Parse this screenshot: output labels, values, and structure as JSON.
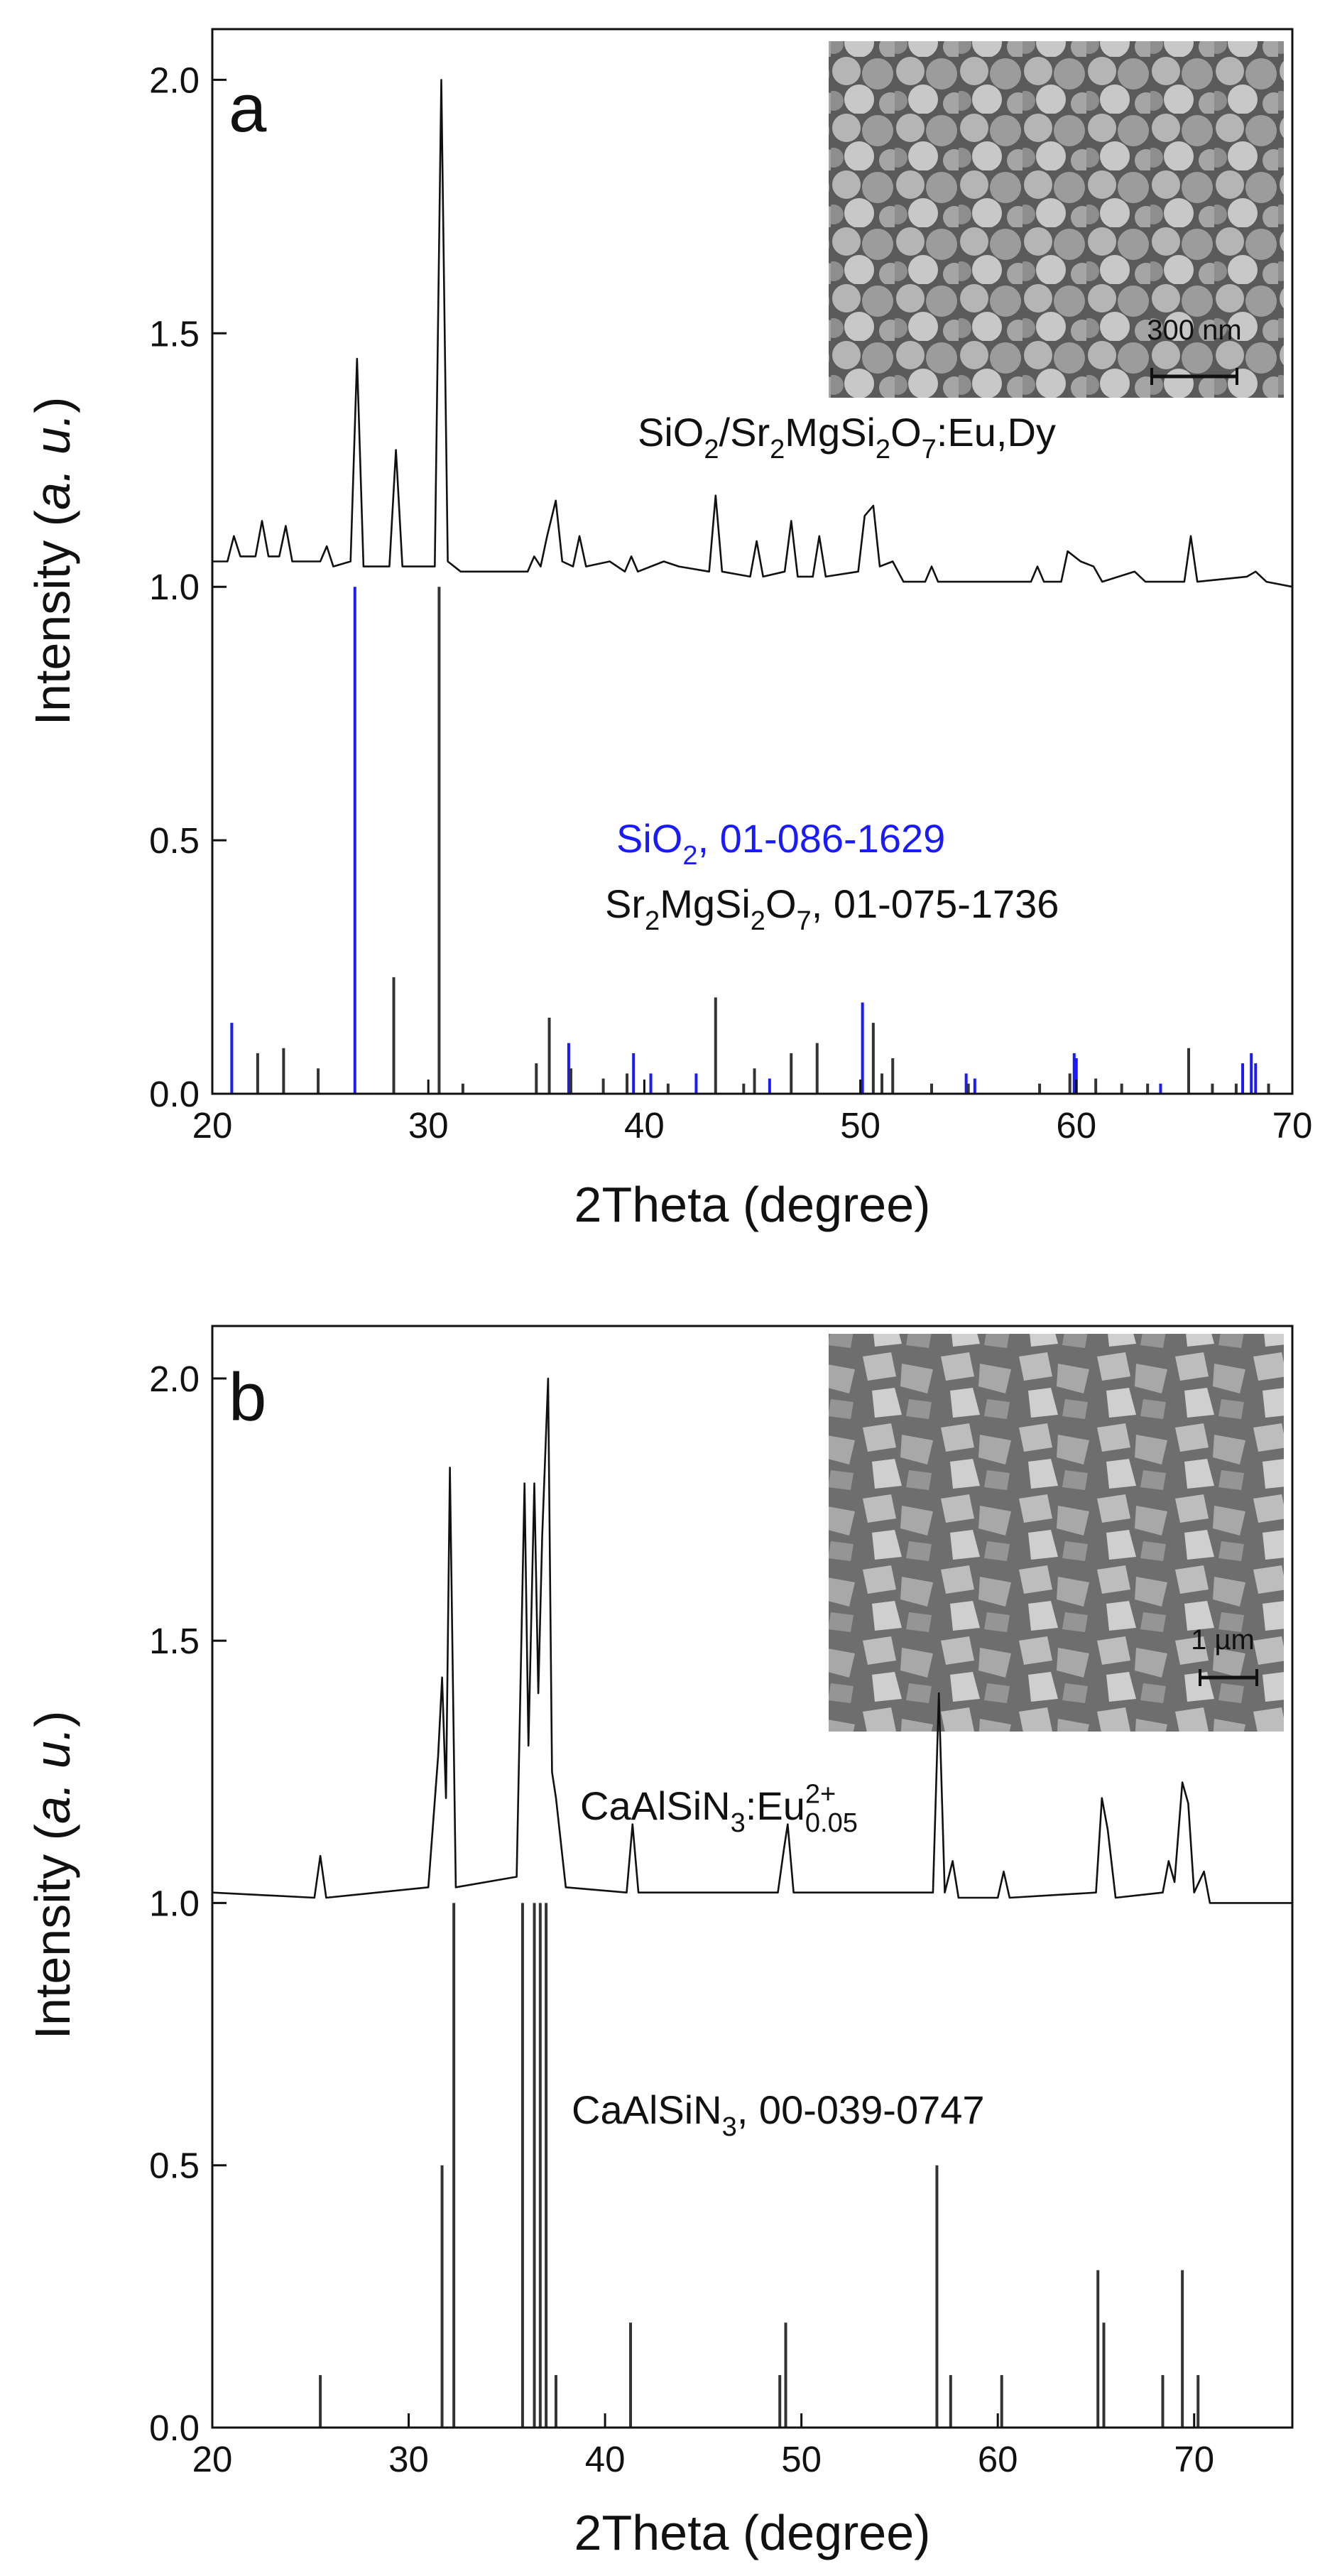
{
  "chart_data": [
    {
      "type": "line",
      "panel_label": "a",
      "xlabel": [
        {
          "text": "2Theta (degree)"
        }
      ],
      "ylabel": [
        {
          "text": "Intensity ("
        },
        {
          "text": "a. u.",
          "italic": true
        },
        {
          "text": ")"
        }
      ],
      "xlim": [
        20,
        70
      ],
      "ylim": [
        0,
        2.1
      ],
      "xticks": [
        20,
        30,
        40,
        50,
        60,
        70
      ],
      "yticks": [
        {
          "value": 0,
          "label": "0.0"
        },
        {
          "value": 0.5,
          "label": "0.5"
        },
        {
          "value": 1,
          "label": "1.0"
        },
        {
          "value": 1.5,
          "label": "1.5"
        },
        {
          "value": 2,
          "label": "2.0"
        }
      ],
      "inset": {
        "scale_bar": "300 nm"
      },
      "annotations": [
        {
          "color": "#111111",
          "parts": [
            {
              "text": "SiO"
            },
            {
              "text": "2",
              "shift": "sub"
            },
            {
              "text": "/Sr"
            },
            {
              "text": "2",
              "shift": "sub"
            },
            {
              "text": "MgSi"
            },
            {
              "text": "2",
              "shift": "sub"
            },
            {
              "text": "O"
            },
            {
              "text": "7",
              "shift": "sub"
            },
            {
              "text": ":Eu,Dy"
            }
          ]
        },
        {
          "color": "#1a1aff",
          "parts": [
            {
              "text": "SiO"
            },
            {
              "text": "2",
              "shift": "sub"
            },
            {
              "text": ", 01-086-1629"
            }
          ]
        },
        {
          "color": "#111111",
          "parts": [
            {
              "text": "Sr"
            },
            {
              "text": "2",
              "shift": "sub"
            },
            {
              "text": "MgSi"
            },
            {
              "text": "2",
              "shift": "sub"
            },
            {
              "text": "O"
            },
            {
              "text": "7",
              "shift": "sub"
            },
            {
              "text": ", 01-075-1736"
            }
          ]
        }
      ],
      "series": [
        {
          "style": "line",
          "color": "#111111",
          "x": [
            20,
            20.7,
            21.0,
            21.3,
            22.0,
            22.3,
            22.6,
            23.1,
            23.4,
            23.7,
            25.0,
            25.3,
            25.6,
            26.4,
            26.7,
            27.0,
            28.2,
            28.5,
            28.8,
            30.3,
            30.6,
            30.9,
            31.5,
            34.6,
            34.9,
            35.2,
            35.5,
            35.9,
            36.2,
            36.7,
            37.0,
            37.3,
            38.4,
            39.1,
            39.4,
            39.7,
            40.9,
            41.6,
            43.0,
            43.3,
            43.6,
            44.9,
            45.2,
            45.5,
            46.5,
            46.8,
            47.1,
            47.8,
            48.1,
            48.4,
            49.9,
            50.2,
            50.6,
            50.9,
            51.5,
            52.0,
            53.0,
            53.3,
            53.6,
            57.9,
            58.2,
            58.5,
            59.3,
            59.6,
            60.2,
            60.8,
            61.2,
            62.7,
            63.2,
            65.0,
            65.3,
            65.6,
            67.9,
            68.3,
            68.8,
            70
          ],
          "values": [
            1.05,
            1.05,
            1.1,
            1.06,
            1.06,
            1.13,
            1.06,
            1.06,
            1.12,
            1.05,
            1.05,
            1.08,
            1.04,
            1.05,
            1.45,
            1.04,
            1.04,
            1.27,
            1.04,
            1.04,
            2.0,
            1.05,
            1.03,
            1.03,
            1.06,
            1.04,
            1.1,
            1.17,
            1.05,
            1.04,
            1.1,
            1.04,
            1.05,
            1.03,
            1.06,
            1.03,
            1.05,
            1.04,
            1.03,
            1.18,
            1.03,
            1.02,
            1.09,
            1.02,
            1.03,
            1.13,
            1.02,
            1.02,
            1.1,
            1.02,
            1.03,
            1.14,
            1.16,
            1.04,
            1.05,
            1.01,
            1.01,
            1.04,
            1.01,
            1.01,
            1.04,
            1.01,
            1.01,
            1.07,
            1.05,
            1.04,
            1.01,
            1.03,
            1.01,
            1.01,
            1.1,
            1.01,
            1.02,
            1.03,
            1.01,
            1.0
          ]
        },
        {
          "style": "stem",
          "color": "#1a1aff",
          "x": [
            20.9,
            26.6,
            36.5,
            39.5,
            40.3,
            42.4,
            45.8,
            50.1,
            54.9,
            55.3,
            59.9,
            60.0,
            63.9,
            67.7,
            68.1,
            68.3
          ],
          "values": [
            0.14,
            1.0,
            0.1,
            0.08,
            0.04,
            0.04,
            0.03,
            0.18,
            0.04,
            0.03,
            0.08,
            0.07,
            0.02,
            0.06,
            0.08,
            0.06
          ]
        },
        {
          "style": "stem",
          "color": "#333333",
          "x": [
            22.1,
            23.3,
            24.9,
            28.4,
            30.5,
            31.6,
            35.0,
            35.6,
            36.6,
            38.1,
            39.2,
            41.1,
            43.3,
            44.6,
            45.1,
            46.8,
            48.0,
            50.6,
            51.0,
            51.5,
            53.3,
            55.0,
            58.3,
            59.7,
            60.9,
            62.1,
            63.3,
            65.2,
            66.3,
            67.4,
            68.9
          ],
          "values": [
            0.08,
            0.09,
            0.05,
            0.23,
            1.0,
            0.02,
            0.06,
            0.15,
            0.05,
            0.03,
            0.04,
            0.02,
            0.19,
            0.02,
            0.05,
            0.08,
            0.1,
            0.14,
            0.04,
            0.07,
            0.02,
            0.02,
            0.02,
            0.04,
            0.03,
            0.02,
            0.02,
            0.09,
            0.02,
            0.02,
            0.02
          ]
        }
      ]
    },
    {
      "type": "line",
      "panel_label": "b",
      "xlabel": [
        {
          "text": "2Theta (degree)"
        }
      ],
      "ylabel": [
        {
          "text": "Intensity ("
        },
        {
          "text": "a. u.",
          "italic": true
        },
        {
          "text": ")"
        }
      ],
      "xlim": [
        20,
        75
      ],
      "ylim": [
        0,
        2.1
      ],
      "xticks": [
        20,
        30,
        40,
        50,
        60,
        70
      ],
      "yticks": [
        {
          "value": 0,
          "label": "0.0"
        },
        {
          "value": 0.5,
          "label": "0.5"
        },
        {
          "value": 1,
          "label": "1.0"
        },
        {
          "value": 1.5,
          "label": "1.5"
        },
        {
          "value": 2,
          "label": "2.0"
        }
      ],
      "inset": {
        "scale_bar": "1 µm"
      },
      "annotations": [
        {
          "color": "#111111",
          "parts": [
            {
              "text": "CaAlSiN"
            },
            {
              "text": "3",
              "shift": "sub"
            },
            {
              "text": ":Eu"
            },
            {
              "text": "2+",
              "shift": "sup"
            },
            {
              "text": "0.05",
              "shift": "sub"
            }
          ]
        },
        {
          "color": "#111111",
          "parts": [
            {
              "text": "CaAlSiN"
            },
            {
              "text": "3",
              "shift": "sub"
            },
            {
              "text": ", 00-039-0747"
            }
          ]
        }
      ],
      "series": [
        {
          "style": "line",
          "color": "#111111",
          "x": [
            20,
            25.2,
            25.5,
            25.8,
            31.0,
            31.5,
            31.7,
            31.9,
            32.1,
            32.4,
            35.5,
            35.9,
            36.1,
            36.4,
            36.6,
            36.8,
            37.1,
            37.3,
            37.5,
            38.0,
            41.1,
            41.4,
            41.7,
            48.8,
            49.1,
            49.3,
            49.6,
            56.7,
            57.0,
            57.3,
            57.7,
            58.0,
            60.0,
            60.3,
            60.6,
            65.0,
            65.3,
            65.6,
            66.0,
            68.4,
            68.7,
            69.0,
            69.4,
            69.7,
            70.0,
            70.5,
            70.8,
            75
          ],
          "values": [
            1.02,
            1.01,
            1.09,
            1.01,
            1.03,
            1.28,
            1.43,
            1.2,
            1.83,
            1.03,
            1.05,
            1.8,
            1.3,
            1.8,
            1.4,
            1.7,
            2.0,
            1.25,
            1.2,
            1.03,
            1.02,
            1.15,
            1.02,
            1.02,
            1.1,
            1.15,
            1.02,
            1.02,
            1.4,
            1.02,
            1.08,
            1.01,
            1.01,
            1.06,
            1.01,
            1.02,
            1.2,
            1.14,
            1.01,
            1.02,
            1.08,
            1.04,
            1.23,
            1.19,
            1.02,
            1.06,
            1.0,
            1.0
          ]
        },
        {
          "style": "stem",
          "color": "#333333",
          "x": [
            25.5,
            31.7,
            32.3,
            35.8,
            36.4,
            36.7,
            37.0,
            37.5,
            41.3,
            48.9,
            49.2,
            56.9,
            57.6,
            60.2,
            65.1,
            65.4,
            68.4,
            69.4,
            70.2
          ],
          "values": [
            0.1,
            0.5,
            1.0,
            1.0,
            1.0,
            1.0,
            1.0,
            0.1,
            0.2,
            0.1,
            0.2,
            0.5,
            0.1,
            0.1,
            0.3,
            0.2,
            0.1,
            0.3,
            0.1
          ]
        }
      ]
    }
  ]
}
